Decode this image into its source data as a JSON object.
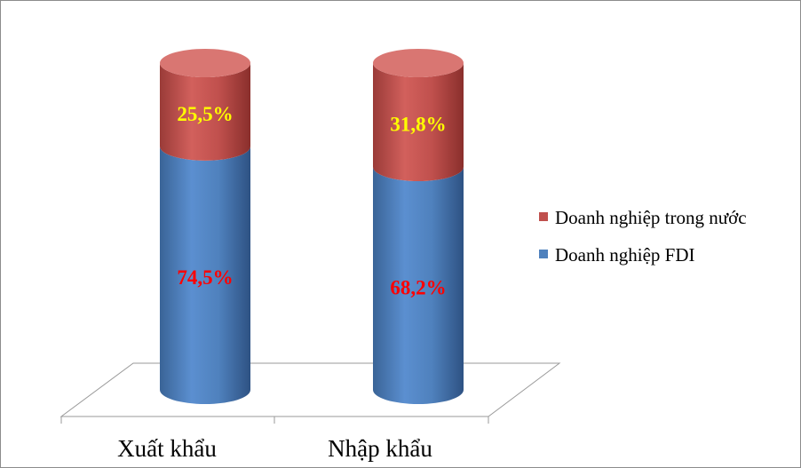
{
  "chart_data": {
    "type": "bar",
    "stacked": true,
    "style": "3d-cylinder",
    "categories": [
      "Xuất khẩu",
      "Nhập khẩu"
    ],
    "series": [
      {
        "name": "Doanh nghiệp FDI",
        "values": [
          74.5,
          68.2
        ],
        "labels": [
          "74,5%",
          "68,2%"
        ],
        "color": "#4f81bd",
        "label_color": "#ff0000"
      },
      {
        "name": "Doanh nghiệp trong nước",
        "values": [
          25.5,
          31.8
        ],
        "labels": [
          "25,5%",
          "31,8%"
        ],
        "color": "#c0504d",
        "label_color": "#ffff00"
      }
    ],
    "ylim": [
      0,
      100
    ],
    "legend_position": "right",
    "legend_order": [
      "Doanh nghiệp trong nước",
      "Doanh nghiệp FDI"
    ]
  }
}
